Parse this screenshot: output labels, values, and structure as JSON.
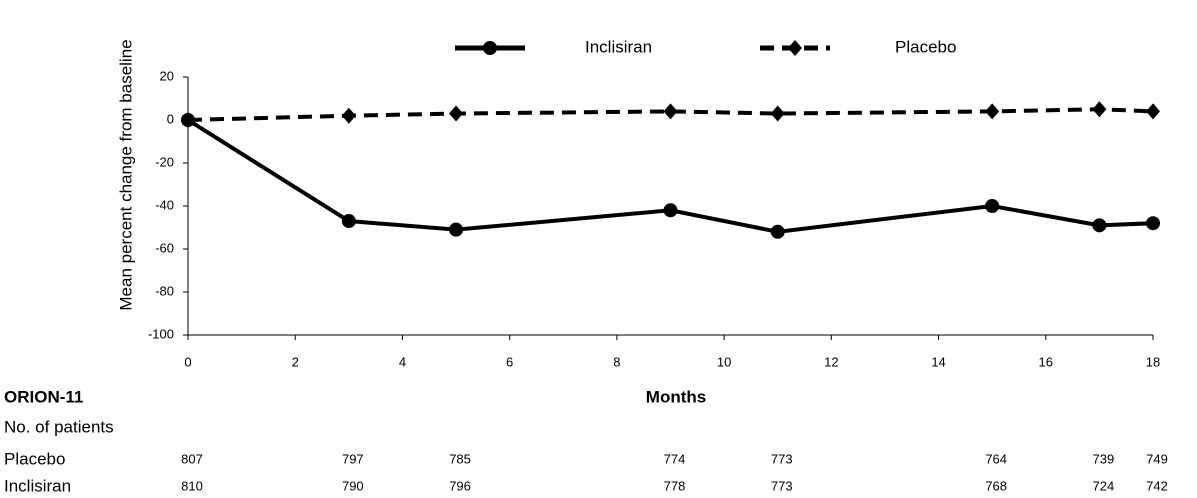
{
  "chart_data": {
    "type": "line",
    "ylabel": "Mean percent change from baseline",
    "xlabel": "Months",
    "x": [
      0,
      3,
      5,
      9,
      11,
      15,
      17,
      18
    ],
    "series": [
      {
        "name": "Inclisiran",
        "color": "#000000",
        "dash": false,
        "marker": "circle",
        "values": [
          0,
          -47,
          -51,
          -42,
          -52,
          -40,
          -49,
          -48
        ]
      },
      {
        "name": "Placebo",
        "color": "#000000",
        "dash": true,
        "marker": "diamond",
        "values": [
          0,
          2,
          3,
          4,
          3,
          4,
          5,
          4
        ]
      }
    ],
    "xlim": [
      0,
      18
    ],
    "xticks": [
      0,
      2,
      4,
      6,
      8,
      10,
      12,
      14,
      16,
      18
    ],
    "ylim": [
      -100,
      20
    ],
    "yticks": [
      -100,
      -80,
      -60,
      -40,
      -20,
      0,
      20
    ],
    "grid": false,
    "legend": "top",
    "at_risk": {
      "title": "ORION-11",
      "subtitle": "No. of patients",
      "rows": [
        {
          "name": "Placebo",
          "values": [
            807,
            797,
            785,
            774,
            773,
            764,
            739,
            749
          ]
        },
        {
          "name": "Inclisiran",
          "values": [
            810,
            790,
            796,
            778,
            773,
            768,
            724,
            742
          ]
        }
      ]
    }
  }
}
